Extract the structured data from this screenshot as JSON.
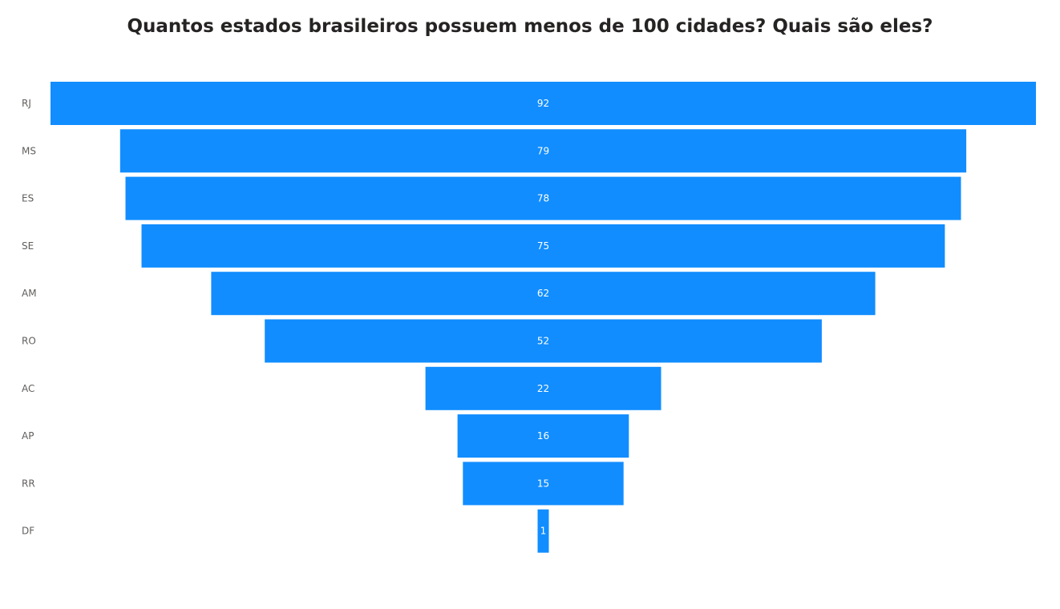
{
  "chart_data": {
    "type": "bar",
    "subtype": "funnel",
    "title": "Quantos estados brasileiros possuem menos de 100 cidades? Quais são eles?",
    "categories": [
      "RJ",
      "MS",
      "ES",
      "SE",
      "AM",
      "RO",
      "AC",
      "AP",
      "RR",
      "DF"
    ],
    "values": [
      92,
      79,
      78,
      75,
      62,
      52,
      22,
      16,
      15,
      1
    ],
    "data_labels": [
      "92",
      "79",
      "78",
      "75",
      "62",
      "52",
      "22",
      "16",
      "15",
      "1"
    ],
    "colors": {
      "bar": "#118DFF",
      "label_text": "#ffffff",
      "category_text": "#605E5C",
      "title_text": "#252423"
    },
    "legend": "none",
    "grid": false
  }
}
